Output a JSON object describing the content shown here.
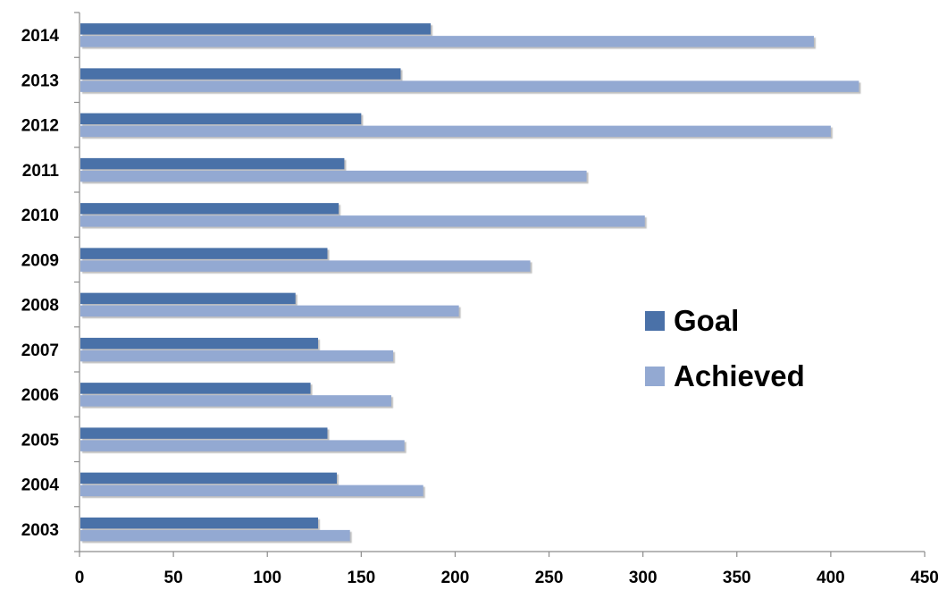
{
  "chart_data": {
    "type": "bar",
    "orientation": "horizontal",
    "categories": [
      "2003",
      "2004",
      "2005",
      "2006",
      "2007",
      "2008",
      "2009",
      "2010",
      "2011",
      "2012",
      "2013",
      "2014"
    ],
    "series": [
      {
        "name": "Goal",
        "color": "#4A71A8",
        "values": [
          127,
          137,
          132,
          123,
          127,
          115,
          132,
          138,
          141,
          150,
          171,
          187
        ]
      },
      {
        "name": "Achieved",
        "color": "#93A9D2",
        "values": [
          144,
          183,
          173,
          166,
          167,
          202,
          240,
          301,
          270,
          400,
          415,
          391
        ]
      }
    ],
    "xlim": [
      0,
      450
    ],
    "xticks": [
      "0",
      "50",
      "100",
      "150",
      "200",
      "250",
      "300",
      "350",
      "400",
      "450"
    ],
    "title": "",
    "xlabel": "",
    "ylabel": "",
    "grid": false,
    "legend_position": "right"
  },
  "legend": {
    "items": [
      "Goal",
      "Achieved"
    ]
  }
}
